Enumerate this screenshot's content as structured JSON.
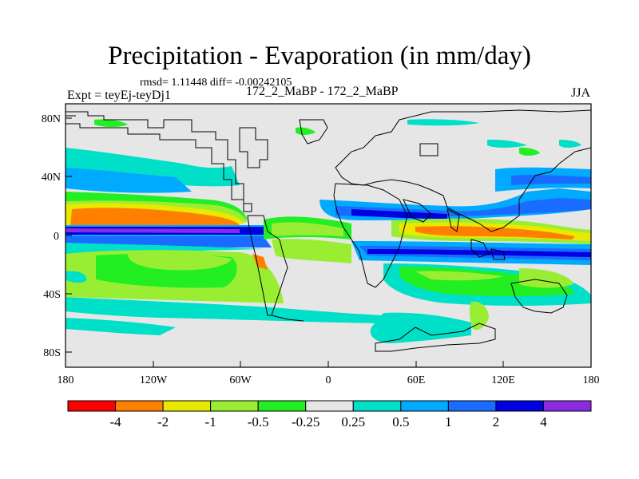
{
  "title": "Precipitation - Evaporation (in mm/day)",
  "stats_line": "rmsd= 1.11448 diff= -0.00242105",
  "experiment": "Expt = teyEj-teyDj1",
  "case_label": "172_2_MaBP - 172_2_MaBP",
  "season": "JJA",
  "map": {
    "lon_ticks": [
      "180",
      "120W",
      "60W",
      "0",
      "60E",
      "120E",
      "180"
    ],
    "lat_ticks": [
      "80N",
      "40N",
      "0",
      "40S",
      "80S"
    ]
  },
  "colorbar": {
    "colors": [
      "#ff0000",
      "#ff7f00",
      "#e8e800",
      "#99ee33",
      "#22ee22",
      "#e6e6e6",
      "#00e0c8",
      "#00aaff",
      "#1a6bff",
      "#0000e0",
      "#8a2be2"
    ],
    "labels": [
      "-4",
      "-2",
      "-1",
      "-0.5",
      "-0.25",
      "0.25",
      "0.5",
      "1",
      "2",
      "4"
    ]
  }
}
